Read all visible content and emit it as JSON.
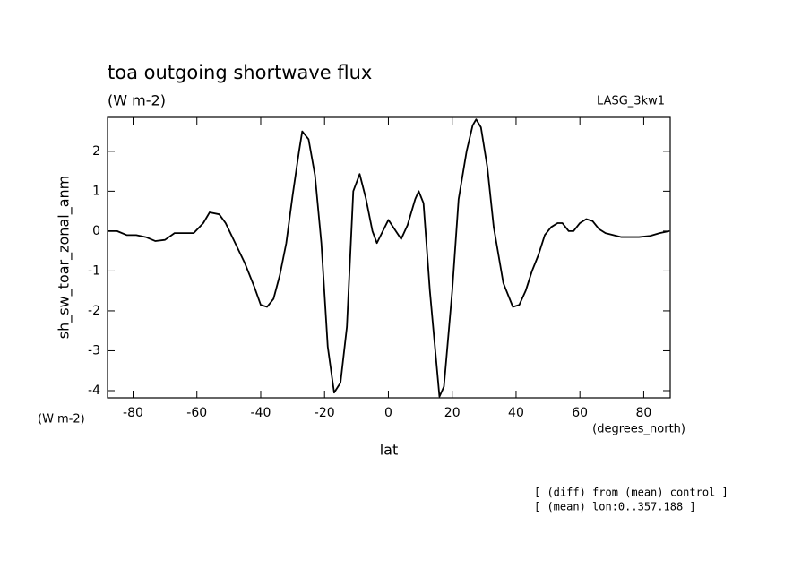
{
  "chart_data": {
    "type": "line",
    "title": "toa outgoing shortwave flux",
    "subtitle": "(W m-2)",
    "dataset": "LASG_3kw1",
    "y_label": "sh_sw_toar_zonal_anm",
    "y_units": "(W m-2)",
    "x_label": "lat",
    "x_units": "(degrees_north)",
    "notes": [
      "[ (diff) from (mean) control ]",
      "[ (mean) lon:0..357.188 ]"
    ],
    "x": [
      -88,
      -85,
      -82,
      -79,
      -76,
      -73,
      -70,
      -67,
      -64,
      -61,
      -58,
      -56,
      -53,
      -51,
      -48,
      -45,
      -42,
      -40,
      -38,
      -36,
      -34,
      -32,
      -30,
      -28,
      -27,
      -25,
      -23,
      -21,
      -19,
      -17,
      -15,
      -13,
      -11,
      -9,
      -7,
      -5,
      -3.6,
      0,
      4,
      6,
      8.4,
      9.5,
      11,
      13,
      16,
      17.4,
      20,
      22,
      24.5,
      26.4,
      27.5,
      29,
      31,
      33,
      36,
      39,
      41,
      43,
      45,
      47,
      49,
      51,
      53,
      54.5,
      56.5,
      58,
      60,
      62,
      64,
      66,
      68,
      70.5,
      73,
      78.5,
      82,
      85,
      88
    ],
    "series": [
      {
        "name": "sh_sw_toar_zonal_anm",
        "color": "#000000",
        "values": [
          0,
          0,
          -0.1,
          -0.1,
          -0.15,
          -0.25,
          -0.22,
          -0.05,
          -0.05,
          -0.05,
          0.2,
          0.47,
          0.42,
          0.2,
          -0.3,
          -0.8,
          -1.4,
          -1.85,
          -1.9,
          -1.7,
          -1.1,
          -0.3,
          0.9,
          2.0,
          2.5,
          2.3,
          1.4,
          -0.3,
          -2.9,
          -4.05,
          -3.8,
          -2.4,
          1.0,
          1.43,
          0.8,
          0.0,
          -0.3,
          0.28,
          -0.2,
          0.15,
          0.8,
          1.0,
          0.7,
          -1.5,
          -4.15,
          -3.9,
          -1.5,
          0.8,
          2.0,
          2.65,
          2.8,
          2.6,
          1.6,
          0.1,
          -1.3,
          -1.9,
          -1.85,
          -1.5,
          -1.0,
          -0.6,
          -0.1,
          0.1,
          0.2,
          0.2,
          0.0,
          0.0,
          0.2,
          0.3,
          0.25,
          0.05,
          -0.05,
          -0.1,
          -0.15,
          -0.15,
          -0.12,
          -0.05,
          0
        ]
      }
    ],
    "xlim": [
      -88,
      88.3
    ],
    "ylim": [
      -4.18,
      2.85
    ],
    "xticks": [
      -80,
      -60,
      -40,
      -20,
      0,
      20,
      40,
      60,
      80
    ],
    "yticks": [
      -4,
      -3,
      -2,
      -1,
      0,
      1,
      2
    ],
    "grid": false
  }
}
